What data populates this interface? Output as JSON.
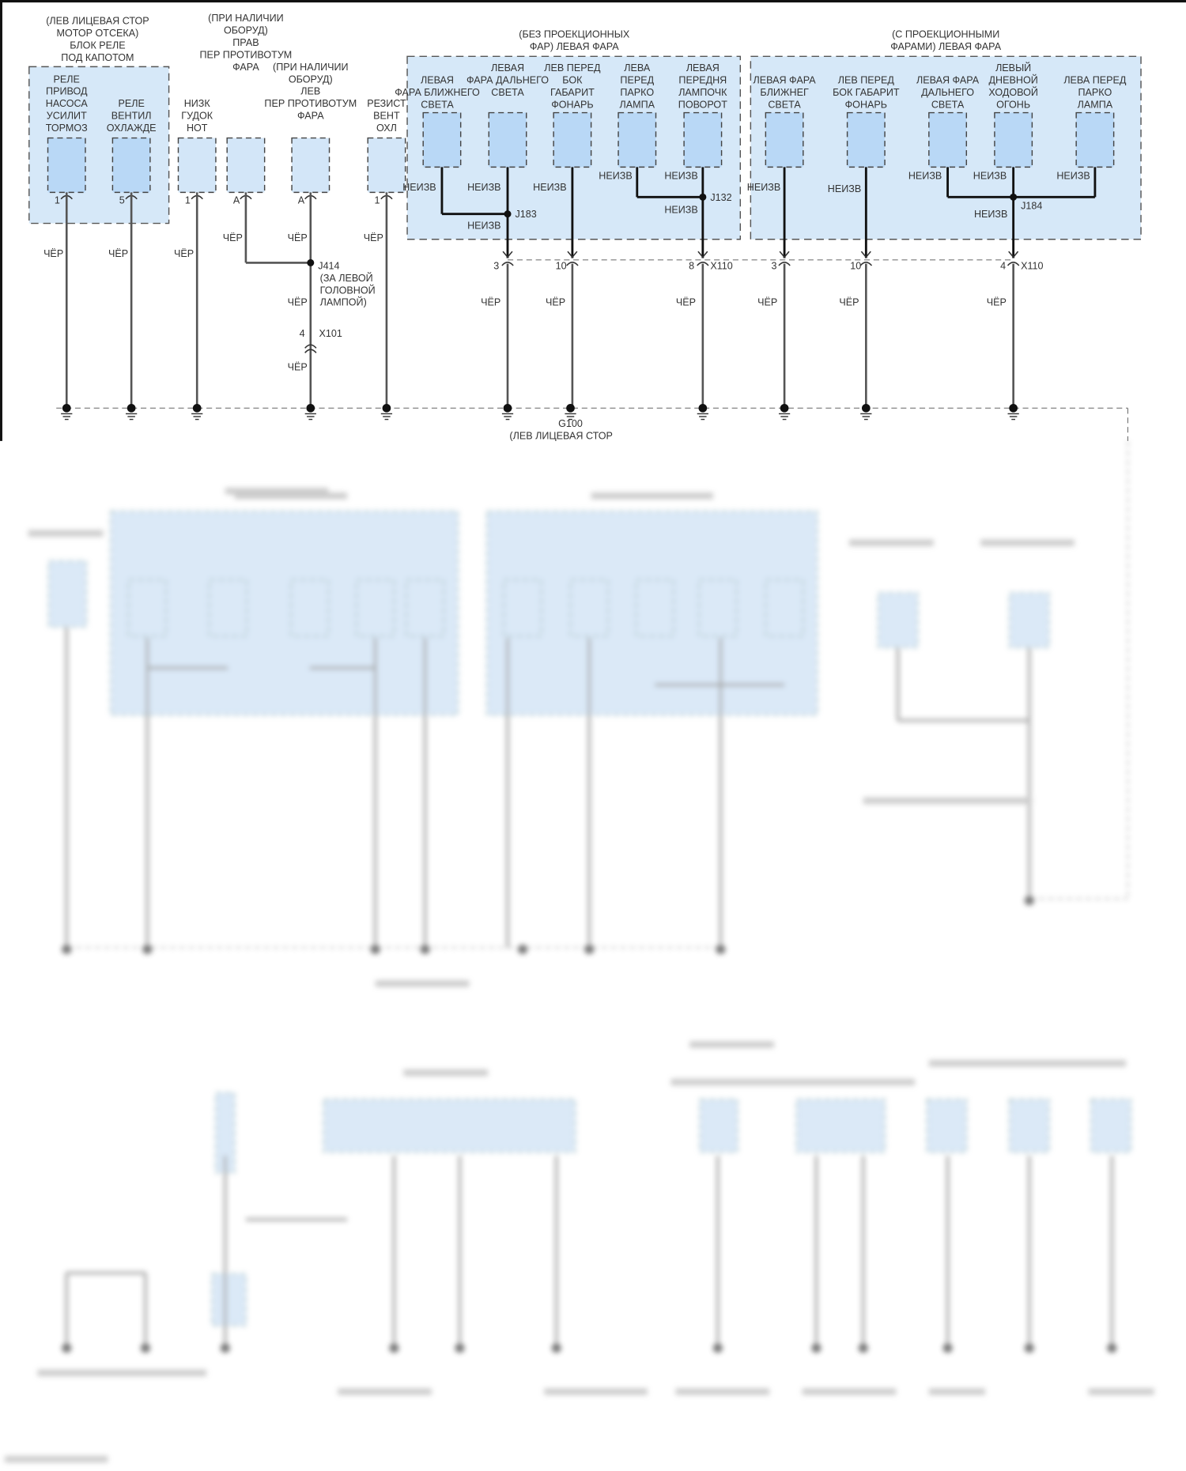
{
  "colors": {
    "group_fill": "#d6e8f8",
    "component_fill": "#b9d8f6",
    "wire": "#555555",
    "text": "#333333"
  },
  "relay_block": {
    "title": [
      "(ЛЕВ ЛИЦЕВАЯ СТОР",
      "МОТОР ОТСЕКА)",
      "БЛОК РЕЛЕ",
      "ПОД КАПОТОМ"
    ],
    "components": [
      {
        "label": [
          "РЕЛЕ",
          "ПРИВОД",
          "НАСОСА",
          "УСИЛИТ",
          "ТОРМОЗ"
        ],
        "pin": "1",
        "wire": "ЧЁР"
      },
      {
        "label": [
          "РЕЛЕ",
          "ВЕНТИЛ",
          "ОХЛАЖДЕ"
        ],
        "pin": "5",
        "wire": "ЧЁР"
      }
    ]
  },
  "standalone": [
    {
      "label": [
        "НИЗК",
        "ГУДОК",
        "НОТ"
      ],
      "pin": "1",
      "wire": "ЧЁР"
    },
    {
      "label": [
        "(ПРИ НАЛИЧИИ",
        "ОБОРУД)",
        "ПРАВ",
        "ПЕР ПРОТИВОТУМ",
        "ФАРА"
      ],
      "pin": "A",
      "wire": "ЧЁР"
    },
    {
      "label": [
        "(ПРИ НАЛИЧИИ",
        "ОБОРУД)",
        "ЛЕВ",
        "ПЕР ПРОТИВОТУМ",
        "ФАРА"
      ],
      "pin": "A",
      "wire": "ЧЁР"
    },
    {
      "label": [
        "РЕЗИСТ",
        "ВЕНТ",
        "ОХЛ"
      ],
      "pin": "1",
      "wire": "ЧЁР"
    }
  ],
  "splice_j414": {
    "id": "J414",
    "note": [
      "(ЗА ЛЕВОЙ",
      "ГОЛОВНОЙ",
      "ЛАМПОЙ)"
    ],
    "wire_below": "ЧЁР"
  },
  "connector_x101": {
    "id": "X101",
    "pin": "4",
    "wire_below": "ЧЁР"
  },
  "headlamp_standard": {
    "title": [
      "(БЕЗ ПРОЕКЦИОННЫХ",
      "ФАР) ЛЕВАЯ ФАРА"
    ],
    "components": [
      {
        "label": [
          "ЛЕВАЯ",
          "ФАРА БЛИЖНЕГО",
          "СВЕТА"
        ],
        "wire": "НЕИЗВ"
      },
      {
        "label": [
          "ЛЕВАЯ",
          "ФАРА ДАЛЬНЕГО",
          "СВЕТА"
        ],
        "wire": "НЕИЗВ"
      },
      {
        "label": [
          "ЛЕВ ПЕРЕД",
          "БОК",
          "ГАБАРИТ",
          "ФОНАРЬ"
        ],
        "wire": "НЕИЗВ"
      },
      {
        "label": [
          "ЛЕВА",
          "ПЕРЕД",
          "ПАРКО",
          "ЛАМПА"
        ],
        "wire": "НЕИЗВ"
      },
      {
        "label": [
          "ЛЕВАЯ",
          "ПЕРЕДНЯ",
          "ЛАМПОЧК",
          "ПОВОРОТ"
        ],
        "wire": "НЕИЗВ"
      }
    ],
    "splices": [
      {
        "id": "J183",
        "wire": "НЕИЗВ"
      },
      {
        "id": "J132",
        "wire": "НЕИЗВ"
      }
    ],
    "connector": {
      "id": "X110",
      "pins": [
        {
          "pin": "3",
          "wire": "ЧЁР"
        },
        {
          "pin": "10",
          "wire": "ЧЁР"
        },
        {
          "pin": "8",
          "wire": "ЧЁР"
        }
      ]
    }
  },
  "headlamp_projector": {
    "title": [
      "(С ПРОЕКЦИОННЫМИ",
      "ФАРАМИ) ЛЕВАЯ ФАРА"
    ],
    "components": [
      {
        "label": [
          "ЛЕВАЯ ФАРА",
          "БЛИЖНЕГ",
          "СВЕТА"
        ],
        "wire": "НЕИЗВ"
      },
      {
        "label": [
          "ЛЕВ ПЕРЕД",
          "БОК ГАБАРИТ",
          "ФОНАРЬ"
        ],
        "wire": "НЕИЗВ"
      },
      {
        "label": [
          "ЛЕВАЯ ФАРА",
          "ДАЛЬНЕГО",
          "СВЕТА"
        ],
        "wire": "НЕИЗВ"
      },
      {
        "label": [
          "ЛЕВЫЙ",
          "ДНЕВНОЙ",
          "ХОДОВОЙ",
          "ОГОНЬ"
        ],
        "wire": "НЕИЗВ"
      },
      {
        "label": [
          "ЛЕВА ПЕРЕД",
          "ПАРКО",
          "ЛАМПА"
        ],
        "wire": "НЕИЗВ"
      }
    ],
    "splices": [
      {
        "id": "J184",
        "wire": "НЕИЗВ"
      }
    ],
    "connector": {
      "id": "X110",
      "pins": [
        {
          "pin": "3",
          "wire": "ЧЁР"
        },
        {
          "pin": "10",
          "wire": "ЧЁР"
        },
        {
          "pin": "4",
          "wire": "ЧЁР"
        }
      ]
    }
  },
  "ground": {
    "id": "G100",
    "location": "(ЛЕВ ЛИЦЕВАЯ СТОР"
  }
}
